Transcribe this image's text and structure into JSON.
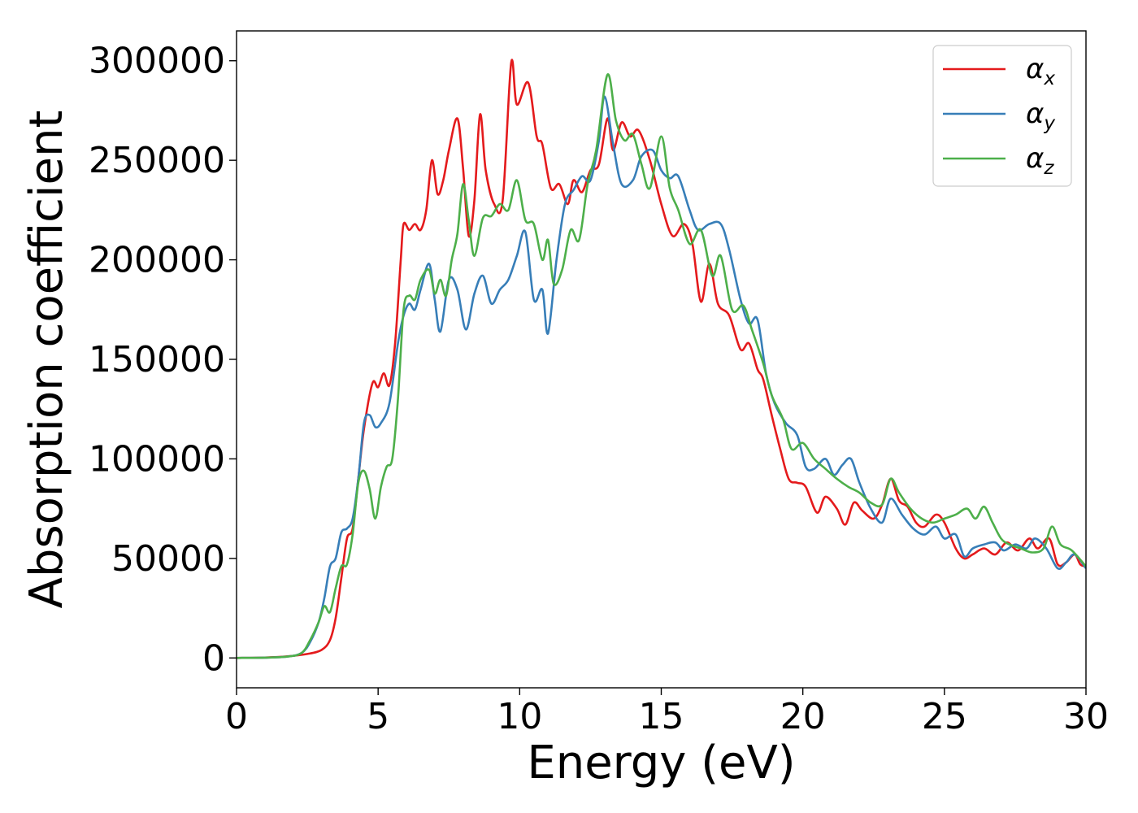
{
  "chart_data": {
    "type": "line",
    "xlabel": "Energy (eV)",
    "ylabel": "Absorption coefficient",
    "xlim": [
      0,
      30
    ],
    "ylim": [
      -15000,
      315000
    ],
    "xticks": [
      0,
      5,
      10,
      15,
      20,
      25,
      30
    ],
    "yticks": [
      0,
      50000,
      100000,
      150000,
      200000,
      250000,
      300000
    ],
    "grid": false,
    "legend_position": "top-right",
    "series": [
      {
        "name": "αx",
        "symbol": "α",
        "subscript": "x",
        "color": "#e41a1c",
        "points": [
          [
            0,
            0
          ],
          [
            1,
            200
          ],
          [
            1.8,
            800
          ],
          [
            2.5,
            2000
          ],
          [
            3,
            4000
          ],
          [
            3.3,
            9000
          ],
          [
            3.5,
            20000
          ],
          [
            3.7,
            40000
          ],
          [
            3.9,
            60000
          ],
          [
            4.1,
            65000
          ],
          [
            4.3,
            90000
          ],
          [
            4.5,
            115000
          ],
          [
            4.8,
            138000
          ],
          [
            5,
            136000
          ],
          [
            5.2,
            143000
          ],
          [
            5.4,
            137000
          ],
          [
            5.6,
            158000
          ],
          [
            5.8,
            200000
          ],
          [
            5.9,
            218000
          ],
          [
            6.1,
            215000
          ],
          [
            6.3,
            218000
          ],
          [
            6.5,
            215000
          ],
          [
            6.7,
            225000
          ],
          [
            6.9,
            250000
          ],
          [
            7.1,
            233000
          ],
          [
            7.3,
            240000
          ],
          [
            7.5,
            255000
          ],
          [
            7.8,
            271000
          ],
          [
            8,
            246000
          ],
          [
            8.2,
            212000
          ],
          [
            8.4,
            230000
          ],
          [
            8.6,
            273000
          ],
          [
            8.8,
            245000
          ],
          [
            9.1,
            228000
          ],
          [
            9.4,
            230000
          ],
          [
            9.7,
            299000
          ],
          [
            9.9,
            278000
          ],
          [
            10.3,
            289000
          ],
          [
            10.6,
            262000
          ],
          [
            10.8,
            258000
          ],
          [
            11.1,
            236000
          ],
          [
            11.4,
            238000
          ],
          [
            11.7,
            228000
          ],
          [
            11.9,
            240000
          ],
          [
            12.2,
            234000
          ],
          [
            12.5,
            245000
          ],
          [
            12.8,
            248000
          ],
          [
            13.1,
            271000
          ],
          [
            13.3,
            255000
          ],
          [
            13.6,
            269000
          ],
          [
            13.9,
            262000
          ],
          [
            14.2,
            265000
          ],
          [
            14.6,
            250000
          ],
          [
            15,
            228000
          ],
          [
            15.4,
            212000
          ],
          [
            15.8,
            218000
          ],
          [
            16.1,
            208000
          ],
          [
            16.4,
            179000
          ],
          [
            16.7,
            198000
          ],
          [
            17,
            178000
          ],
          [
            17.4,
            172000
          ],
          [
            17.8,
            155000
          ],
          [
            18.1,
            158000
          ],
          [
            18.4,
            145000
          ],
          [
            18.6,
            140000
          ],
          [
            18.9,
            122000
          ],
          [
            19.2,
            105000
          ],
          [
            19.5,
            90000
          ],
          [
            19.8,
            88000
          ],
          [
            20.1,
            86000
          ],
          [
            20.5,
            73000
          ],
          [
            20.8,
            81000
          ],
          [
            21.2,
            75000
          ],
          [
            21.5,
            67000
          ],
          [
            21.8,
            78000
          ],
          [
            22.1,
            74000
          ],
          [
            22.5,
            70000
          ],
          [
            22.8,
            77000
          ],
          [
            23.1,
            90000
          ],
          [
            23.4,
            79000
          ],
          [
            23.7,
            76000
          ],
          [
            24,
            68000
          ],
          [
            24.3,
            66000
          ],
          [
            24.7,
            72000
          ],
          [
            25,
            68000
          ],
          [
            25.4,
            55000
          ],
          [
            25.7,
            50000
          ],
          [
            26,
            52000
          ],
          [
            26.4,
            55000
          ],
          [
            26.8,
            52000
          ],
          [
            27.2,
            58000
          ],
          [
            27.6,
            54000
          ],
          [
            28,
            60000
          ],
          [
            28.3,
            55000
          ],
          [
            28.7,
            60000
          ],
          [
            29,
            47000
          ],
          [
            29.3,
            48000
          ],
          [
            29.6,
            52000
          ],
          [
            29.8,
            47000
          ],
          [
            30,
            46000
          ]
        ]
      },
      {
        "name": "αy",
        "symbol": "α",
        "subscript": "y",
        "color": "#377eb8",
        "points": [
          [
            0,
            0
          ],
          [
            1,
            150
          ],
          [
            1.8,
            700
          ],
          [
            2.3,
            2500
          ],
          [
            2.6,
            8000
          ],
          [
            2.9,
            18000
          ],
          [
            3.1,
            30000
          ],
          [
            3.3,
            46000
          ],
          [
            3.5,
            50000
          ],
          [
            3.7,
            63000
          ],
          [
            3.9,
            65000
          ],
          [
            4.1,
            70000
          ],
          [
            4.3,
            90000
          ],
          [
            4.5,
            118000
          ],
          [
            4.7,
            122000
          ],
          [
            4.9,
            116000
          ],
          [
            5.1,
            118000
          ],
          [
            5.4,
            128000
          ],
          [
            5.7,
            158000
          ],
          [
            5.9,
            172000
          ],
          [
            6.1,
            178000
          ],
          [
            6.3,
            175000
          ],
          [
            6.5,
            185000
          ],
          [
            6.8,
            198000
          ],
          [
            7,
            180000
          ],
          [
            7.2,
            164000
          ],
          [
            7.5,
            190000
          ],
          [
            7.8,
            185000
          ],
          [
            8.1,
            165000
          ],
          [
            8.4,
            183000
          ],
          [
            8.7,
            192000
          ],
          [
            9,
            178000
          ],
          [
            9.3,
            185000
          ],
          [
            9.6,
            190000
          ],
          [
            9.9,
            202000
          ],
          [
            10.2,
            214000
          ],
          [
            10.5,
            180000
          ],
          [
            10.8,
            185000
          ],
          [
            11,
            163000
          ],
          [
            11.3,
            200000
          ],
          [
            11.6,
            228000
          ],
          [
            11.9,
            235000
          ],
          [
            12.2,
            242000
          ],
          [
            12.5,
            240000
          ],
          [
            12.8,
            260000
          ],
          [
            13,
            282000
          ],
          [
            13.3,
            258000
          ],
          [
            13.6,
            238000
          ],
          [
            14,
            240000
          ],
          [
            14.3,
            252000
          ],
          [
            14.7,
            255000
          ],
          [
            15,
            245000
          ],
          [
            15.3,
            241000
          ],
          [
            15.6,
            242000
          ],
          [
            16,
            225000
          ],
          [
            16.3,
            215000
          ],
          [
            16.7,
            218000
          ],
          [
            17.1,
            218000
          ],
          [
            17.4,
            205000
          ],
          [
            17.8,
            180000
          ],
          [
            18.1,
            168000
          ],
          [
            18.4,
            170000
          ],
          [
            18.7,
            143000
          ],
          [
            19,
            128000
          ],
          [
            19.4,
            118000
          ],
          [
            19.8,
            112000
          ],
          [
            20.1,
            96000
          ],
          [
            20.4,
            95000
          ],
          [
            20.8,
            100000
          ],
          [
            21.1,
            92000
          ],
          [
            21.4,
            97000
          ],
          [
            21.7,
            100000
          ],
          [
            22,
            88000
          ],
          [
            22.4,
            75000
          ],
          [
            22.8,
            68000
          ],
          [
            23.1,
            80000
          ],
          [
            23.5,
            72000
          ],
          [
            23.9,
            65000
          ],
          [
            24.3,
            62000
          ],
          [
            24.7,
            66000
          ],
          [
            25,
            60000
          ],
          [
            25.4,
            62000
          ],
          [
            25.7,
            51000
          ],
          [
            26,
            55000
          ],
          [
            26.4,
            57000
          ],
          [
            26.8,
            58000
          ],
          [
            27.1,
            54000
          ],
          [
            27.5,
            57000
          ],
          [
            27.9,
            55000
          ],
          [
            28.2,
            60000
          ],
          [
            28.6,
            55000
          ],
          [
            29,
            45000
          ],
          [
            29.3,
            48000
          ],
          [
            29.6,
            52000
          ],
          [
            30,
            45000
          ]
        ]
      },
      {
        "name": "αz",
        "symbol": "α",
        "subscript": "z",
        "color": "#4daf4a",
        "points": [
          [
            0,
            0
          ],
          [
            1,
            150
          ],
          [
            1.8,
            700
          ],
          [
            2.3,
            2500
          ],
          [
            2.6,
            9000
          ],
          [
            2.9,
            18000
          ],
          [
            3.1,
            26000
          ],
          [
            3.3,
            23000
          ],
          [
            3.5,
            35000
          ],
          [
            3.7,
            46000
          ],
          [
            3.9,
            47000
          ],
          [
            4.1,
            62000
          ],
          [
            4.3,
            88000
          ],
          [
            4.5,
            94000
          ],
          [
            4.7,
            85000
          ],
          [
            4.9,
            70000
          ],
          [
            5.1,
            86000
          ],
          [
            5.3,
            96000
          ],
          [
            5.5,
            100000
          ],
          [
            5.7,
            130000
          ],
          [
            5.9,
            175000
          ],
          [
            6.1,
            182000
          ],
          [
            6.3,
            180000
          ],
          [
            6.5,
            190000
          ],
          [
            6.8,
            195000
          ],
          [
            7,
            183000
          ],
          [
            7.2,
            190000
          ],
          [
            7.4,
            182000
          ],
          [
            7.6,
            200000
          ],
          [
            7.8,
            213000
          ],
          [
            8,
            238000
          ],
          [
            8.2,
            220000
          ],
          [
            8.4,
            202000
          ],
          [
            8.7,
            221000
          ],
          [
            9,
            222000
          ],
          [
            9.3,
            228000
          ],
          [
            9.6,
            225000
          ],
          [
            9.9,
            240000
          ],
          [
            10.2,
            220000
          ],
          [
            10.5,
            218000
          ],
          [
            10.8,
            200000
          ],
          [
            11,
            210000
          ],
          [
            11.2,
            188000
          ],
          [
            11.5,
            195000
          ],
          [
            11.8,
            215000
          ],
          [
            12.1,
            210000
          ],
          [
            12.4,
            238000
          ],
          [
            12.7,
            255000
          ],
          [
            13.1,
            293000
          ],
          [
            13.4,
            270000
          ],
          [
            13.7,
            260000
          ],
          [
            14,
            263000
          ],
          [
            14.3,
            248000
          ],
          [
            14.6,
            236000
          ],
          [
            15,
            262000
          ],
          [
            15.3,
            236000
          ],
          [
            15.6,
            225000
          ],
          [
            16,
            208000
          ],
          [
            16.4,
            215000
          ],
          [
            16.8,
            192000
          ],
          [
            17.1,
            202000
          ],
          [
            17.5,
            175000
          ],
          [
            17.9,
            177000
          ],
          [
            18.2,
            165000
          ],
          [
            18.6,
            148000
          ],
          [
            18.9,
            132000
          ],
          [
            19.3,
            120000
          ],
          [
            19.6,
            105000
          ],
          [
            20,
            108000
          ],
          [
            20.4,
            100000
          ],
          [
            20.8,
            95000
          ],
          [
            21.2,
            90000
          ],
          [
            21.6,
            86000
          ],
          [
            22,
            83000
          ],
          [
            22.4,
            78000
          ],
          [
            22.8,
            77000
          ],
          [
            23.1,
            90000
          ],
          [
            23.4,
            83000
          ],
          [
            23.8,
            75000
          ],
          [
            24.2,
            70000
          ],
          [
            24.6,
            68000
          ],
          [
            25,
            70000
          ],
          [
            25.4,
            72000
          ],
          [
            25.8,
            75000
          ],
          [
            26.1,
            70000
          ],
          [
            26.4,
            76000
          ],
          [
            26.7,
            68000
          ],
          [
            27,
            60000
          ],
          [
            27.3,
            57000
          ],
          [
            27.7,
            55000
          ],
          [
            28.1,
            53000
          ],
          [
            28.5,
            55000
          ],
          [
            28.8,
            66000
          ],
          [
            29.1,
            57000
          ],
          [
            29.5,
            54000
          ],
          [
            30,
            46000
          ]
        ]
      }
    ]
  }
}
